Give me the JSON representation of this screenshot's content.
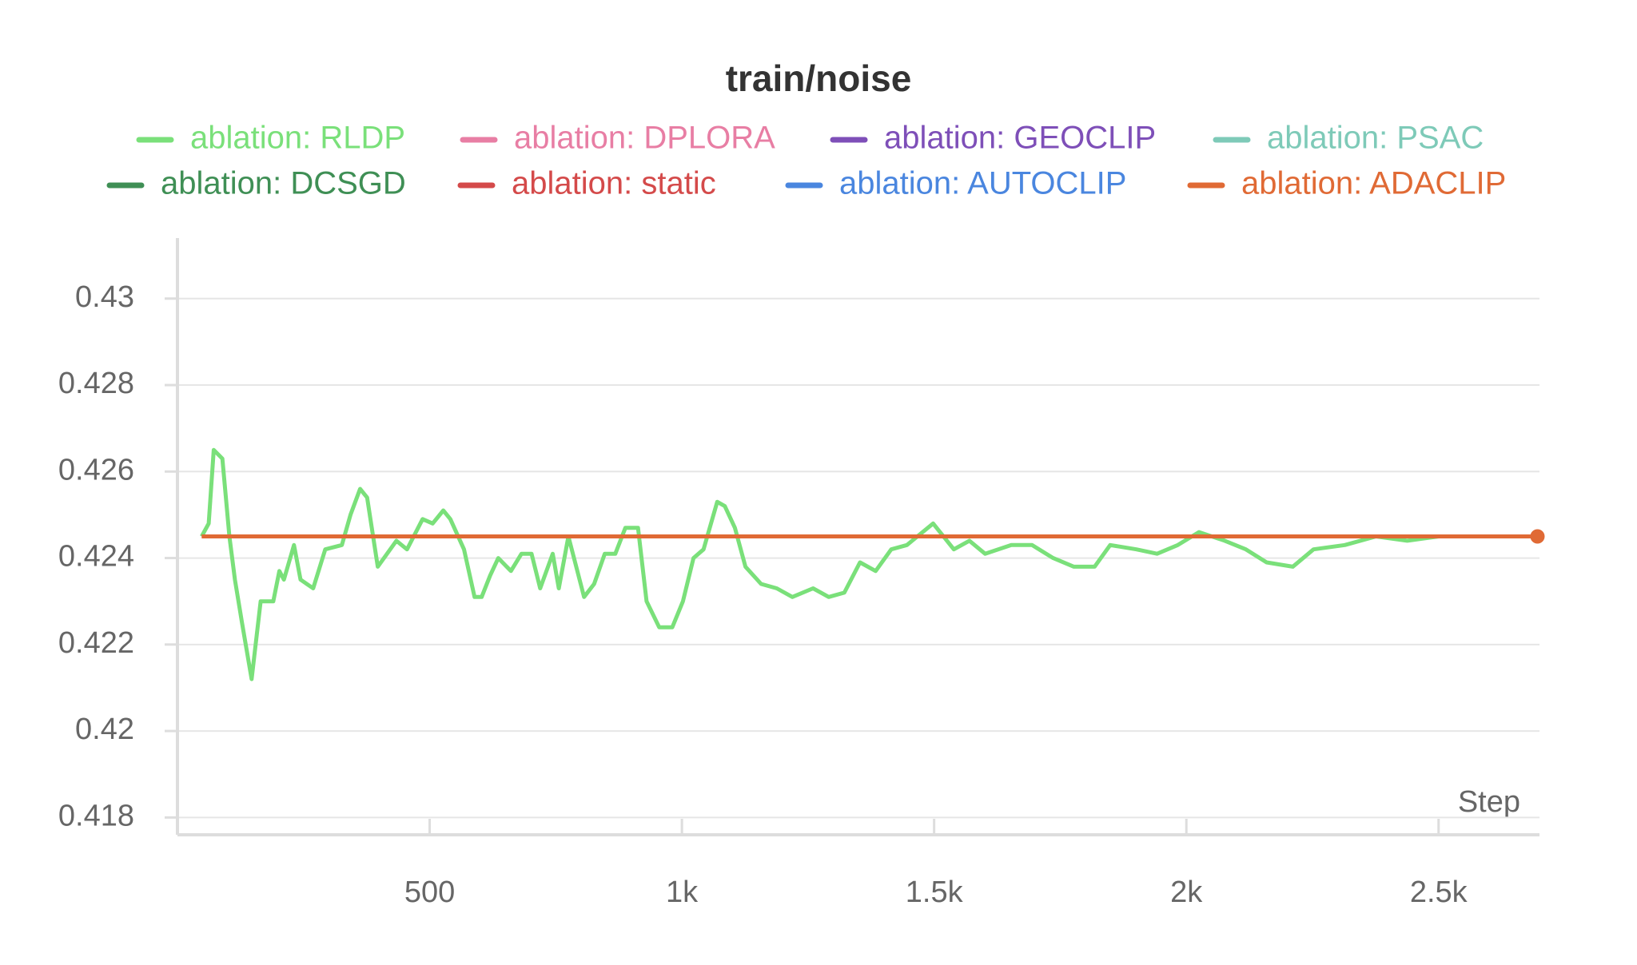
{
  "chart_data": {
    "type": "line",
    "title": "train/noise",
    "x_label": "Step",
    "x": [
      48,
      62,
      72,
      89,
      103,
      114,
      128,
      147,
      165,
      190,
      202,
      211,
      231,
      244,
      269,
      293,
      326,
      343,
      362,
      376,
      397,
      434,
      455,
      486,
      506,
      527,
      541,
      568,
      589,
      603,
      620,
      636,
      661,
      682,
      702,
      719,
      744,
      756,
      775,
      806,
      826,
      847,
      868,
      888,
      913,
      930,
      955,
      981,
      1002,
      1023,
      1043,
      1070,
      1085,
      1105,
      1126,
      1157,
      1188,
      1219,
      1260,
      1291,
      1322,
      1353,
      1384,
      1415,
      1446,
      1498,
      1539,
      1570,
      1601,
      1653,
      1694,
      1736,
      1777,
      1818,
      1849,
      1901,
      1942,
      1983,
      2025,
      2076,
      2118,
      2159,
      2211,
      2252,
      2314,
      2376,
      2438,
      2500,
      2583,
      2696
    ],
    "series": [
      {
        "name": "ablation: RLDP",
        "color": "#7ae07a",
        "values": [
          0.4245,
          0.4248,
          0.4265,
          0.4263,
          0.4245,
          0.4235,
          0.4225,
          0.4212,
          0.423,
          0.423,
          0.4237,
          0.4235,
          0.4243,
          0.4235,
          0.4233,
          0.4242,
          0.4243,
          0.425,
          0.4256,
          0.4254,
          0.4238,
          0.4244,
          0.4242,
          0.4249,
          0.4248,
          0.4251,
          0.4249,
          0.4242,
          0.4231,
          0.4231,
          0.4236,
          0.424,
          0.4237,
          0.4241,
          0.4241,
          0.4233,
          0.4241,
          0.4233,
          0.4245,
          0.4231,
          0.4234,
          0.4241,
          0.4241,
          0.4247,
          0.4247,
          0.423,
          0.4224,
          0.4224,
          0.423,
          0.424,
          0.4242,
          0.4253,
          0.4252,
          0.4247,
          0.4238,
          0.4234,
          0.4233,
          0.4231,
          0.4233,
          0.4231,
          0.4232,
          0.4239,
          0.4237,
          0.4242,
          0.4243,
          0.4248,
          0.4242,
          0.4244,
          0.4241,
          0.4243,
          0.4243,
          0.424,
          0.4238,
          0.4238,
          0.4243,
          0.4242,
          0.4241,
          0.4243,
          0.4246,
          0.4244,
          0.4242,
          0.4239,
          0.4238,
          0.4242,
          0.4243,
          0.4245,
          0.4244,
          0.4245,
          0.4245,
          0.4245
        ]
      },
      {
        "name": "ablation: DPLORA",
        "color": "#e87ea4",
        "values": [
          null,
          null,
          null,
          null,
          null,
          null,
          null,
          null,
          null,
          null,
          null,
          null,
          null,
          null,
          null,
          null,
          null,
          null,
          null,
          null,
          null,
          null,
          null,
          null,
          null,
          null,
          null,
          null,
          null,
          null,
          null,
          null,
          null,
          null,
          null,
          null,
          null,
          null,
          null,
          null,
          null,
          null,
          null,
          null,
          null,
          null,
          null,
          null,
          null,
          null,
          null,
          null,
          null,
          null,
          null,
          null,
          null,
          null,
          null,
          null,
          null,
          null,
          null,
          null,
          null,
          null,
          null,
          null,
          null,
          null,
          null,
          null,
          null,
          null,
          null,
          null,
          null,
          null,
          null,
          null,
          null,
          null,
          null,
          null,
          null,
          null,
          null,
          null,
          null,
          null
        ]
      },
      {
        "name": "ablation: GEOCLIP",
        "color": "#7e4fb8",
        "values": [
          null,
          null,
          null,
          null,
          null,
          null,
          null,
          null,
          null,
          null,
          null,
          null,
          null,
          null,
          null,
          null,
          null,
          null,
          null,
          null,
          null,
          null,
          null,
          null,
          null,
          null,
          null,
          null,
          null,
          null,
          null,
          null,
          null,
          null,
          null,
          null,
          null,
          null,
          null,
          null,
          null,
          null,
          null,
          null,
          null,
          null,
          null,
          null,
          null,
          null,
          null,
          null,
          null,
          null,
          null,
          null,
          null,
          null,
          null,
          null,
          null,
          null,
          null,
          null,
          null,
          null,
          null,
          null,
          null,
          null,
          null,
          null,
          null,
          null,
          null,
          null,
          null,
          null,
          null,
          null,
          null,
          null,
          null,
          null,
          null,
          null,
          null,
          null,
          null,
          null
        ]
      },
      {
        "name": "ablation: PSAC",
        "color": "#7ecab8",
        "values": [
          null,
          null,
          null,
          null,
          null,
          null,
          null,
          null,
          null,
          null,
          null,
          null,
          null,
          null,
          null,
          null,
          null,
          null,
          null,
          null,
          null,
          null,
          null,
          null,
          null,
          null,
          null,
          null,
          null,
          null,
          null,
          null,
          null,
          null,
          null,
          null,
          null,
          null,
          null,
          null,
          null,
          null,
          null,
          null,
          null,
          null,
          null,
          null,
          null,
          null,
          null,
          null,
          null,
          null,
          null,
          null,
          null,
          null,
          null,
          null,
          null,
          null,
          null,
          null,
          null,
          null,
          null,
          null,
          null,
          null,
          null,
          null,
          null,
          null,
          null,
          null,
          null,
          null,
          null,
          null,
          null,
          null,
          null,
          null,
          null,
          null,
          null,
          null,
          null,
          null
        ]
      },
      {
        "name": "ablation: DCSGD",
        "color": "#3f8f55",
        "values": [
          null,
          null,
          null,
          null,
          null,
          null,
          null,
          null,
          null,
          null,
          null,
          null,
          null,
          null,
          null,
          null,
          null,
          null,
          null,
          null,
          null,
          null,
          null,
          null,
          null,
          null,
          null,
          null,
          null,
          null,
          null,
          null,
          null,
          null,
          null,
          null,
          null,
          null,
          null,
          null,
          null,
          null,
          null,
          null,
          null,
          null,
          null,
          null,
          null,
          null,
          null,
          null,
          null,
          null,
          null,
          null,
          null,
          null,
          null,
          null,
          null,
          null,
          null,
          null,
          null,
          null,
          null,
          null,
          null,
          null,
          null,
          null,
          null,
          null,
          null,
          null,
          null,
          null,
          null,
          null,
          null,
          null,
          null,
          null,
          null,
          null,
          null,
          null,
          null,
          null
        ]
      },
      {
        "name": "ablation: static",
        "color": "#d44a4a",
        "values": [
          null,
          null,
          null,
          null,
          null,
          null,
          null,
          null,
          null,
          null,
          null,
          null,
          null,
          null,
          null,
          null,
          null,
          null,
          null,
          null,
          null,
          null,
          null,
          null,
          null,
          null,
          null,
          null,
          null,
          null,
          null,
          null,
          null,
          null,
          null,
          null,
          null,
          null,
          null,
          null,
          null,
          null,
          null,
          null,
          null,
          null,
          null,
          null,
          null,
          null,
          null,
          null,
          null,
          null,
          null,
          null,
          null,
          null,
          null,
          null,
          null,
          null,
          null,
          null,
          null,
          null,
          null,
          null,
          null,
          null,
          null,
          null,
          null,
          null,
          null,
          null,
          null,
          null,
          null,
          null,
          null,
          null,
          null,
          null,
          null,
          null,
          null,
          null,
          null,
          null
        ]
      },
      {
        "name": "ablation: AUTOCLIP",
        "color": "#4a86df",
        "values": [
          null,
          null,
          null,
          null,
          null,
          null,
          null,
          null,
          null,
          null,
          null,
          null,
          null,
          null,
          null,
          null,
          null,
          null,
          null,
          null,
          null,
          null,
          null,
          null,
          null,
          null,
          null,
          null,
          null,
          null,
          null,
          null,
          null,
          null,
          null,
          null,
          null,
          null,
          null,
          null,
          null,
          null,
          null,
          null,
          null,
          null,
          null,
          null,
          null,
          null,
          null,
          null,
          null,
          null,
          null,
          null,
          null,
          null,
          null,
          null,
          null,
          null,
          null,
          null,
          null,
          null,
          null,
          null,
          null,
          null,
          null,
          null,
          null,
          null,
          null,
          null,
          null,
          null,
          null,
          null,
          null,
          null,
          null,
          null,
          null,
          null,
          null,
          null,
          null,
          null
        ]
      },
      {
        "name": "ablation: ADACLIP",
        "color": "#e06a35",
        "values": [
          0.4245,
          0.4245,
          0.4245,
          0.4245,
          0.4245,
          0.4245,
          0.4245,
          0.4245,
          0.4245,
          0.4245,
          0.4245,
          0.4245,
          0.4245,
          0.4245,
          0.4245,
          0.4245,
          0.4245,
          0.4245,
          0.4245,
          0.4245,
          0.4245,
          0.4245,
          0.4245,
          0.4245,
          0.4245,
          0.4245,
          0.4245,
          0.4245,
          0.4245,
          0.4245,
          0.4245,
          0.4245,
          0.4245,
          0.4245,
          0.4245,
          0.4245,
          0.4245,
          0.4245,
          0.4245,
          0.4245,
          0.4245,
          0.4245,
          0.4245,
          0.4245,
          0.4245,
          0.4245,
          0.4245,
          0.4245,
          0.4245,
          0.4245,
          0.4245,
          0.4245,
          0.4245,
          0.4245,
          0.4245,
          0.4245,
          0.4245,
          0.4245,
          0.4245,
          0.4245,
          0.4245,
          0.4245,
          0.4245,
          0.4245,
          0.4245,
          0.4245,
          0.4245,
          0.4245,
          0.4245,
          0.4245,
          0.4245,
          0.4245,
          0.4245,
          0.4245,
          0.4245,
          0.4245,
          0.4245,
          0.4245,
          0.4245,
          0.4245,
          0.4245,
          0.4245,
          0.4245,
          0.4245,
          0.4245,
          0.4245,
          0.4245,
          0.4245,
          0.4245,
          0.4245
        ]
      }
    ],
    "xlim": [
      0,
      2700
    ],
    "ylim": [
      0.4176,
      0.4314
    ],
    "xticks": [
      500,
      {
        "value": 1000,
        "label": "1k"
      },
      {
        "value": 1500,
        "label": "1.5k"
      },
      {
        "value": 2000,
        "label": "2k"
      },
      {
        "value": 2500,
        "label": "2.5k"
      }
    ],
    "yticks": [
      0.418,
      0.42,
      0.422,
      0.424,
      0.426,
      0.428,
      0.43
    ],
    "grid": true
  }
}
